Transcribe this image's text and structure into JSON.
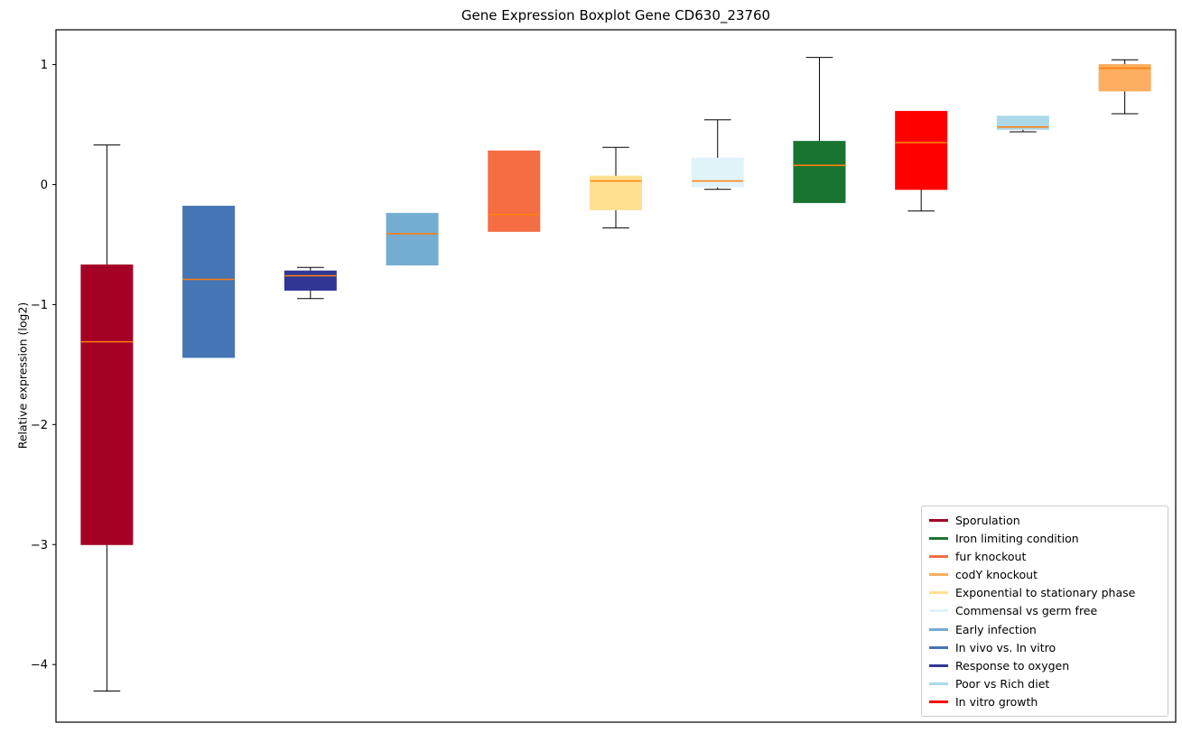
{
  "chart_data": {
    "type": "boxplot",
    "title": "Gene Expression Boxplot Gene CD630_23760",
    "xlabel": "",
    "ylabel": "Relative expression (log2)",
    "ylim": [
      -4.48,
      1.29
    ],
    "yticks": [
      1,
      0,
      -1,
      -2,
      -3,
      -4
    ],
    "grid": false,
    "median_color": "#ff7f0e",
    "whisker_color": "#000000",
    "legend_position": "lower right",
    "series": [
      {
        "label": "Sporulation",
        "color": "#a50026",
        "whisker_low": -4.22,
        "q1": -3.0,
        "median": -1.31,
        "q3": -0.67,
        "whisker_high": 0.33
      },
      {
        "label": "In vivo vs. In vitro",
        "color": "#4575b4",
        "whisker_low": -1.44,
        "q1": -1.44,
        "median": -0.79,
        "q3": -0.18,
        "whisker_high": -0.18
      },
      {
        "label": "Response to oxygen",
        "color": "#313695",
        "whisker_low": -0.95,
        "q1": -0.88,
        "median": -0.76,
        "q3": -0.72,
        "whisker_high": -0.69
      },
      {
        "label": "Early infection",
        "color": "#74add1",
        "whisker_low": -0.67,
        "q1": -0.67,
        "median": -0.41,
        "q3": -0.24,
        "whisker_high": -0.24
      },
      {
        "label": "fur knockout",
        "color": "#f46d43",
        "whisker_low": -0.39,
        "q1": -0.39,
        "median": -0.25,
        "q3": 0.28,
        "whisker_high": 0.28
      },
      {
        "label": "Exponential to stationary phase",
        "color": "#fee090",
        "whisker_low": -0.36,
        "q1": -0.21,
        "median": 0.03,
        "q3": 0.07,
        "whisker_high": 0.31
      },
      {
        "label": "Commensal vs germ free",
        "color": "#e0f3f8",
        "whisker_low": -0.04,
        "q1": -0.02,
        "median": 0.03,
        "q3": 0.22,
        "whisker_high": 0.54
      },
      {
        "label": "Iron limiting condition",
        "color": "#1a7431",
        "whisker_low": -0.15,
        "q1": -0.15,
        "median": 0.16,
        "q3": 0.36,
        "whisker_high": 1.06
      },
      {
        "label": "In vitro growth",
        "color": "#ff0000",
        "whisker_low": -0.22,
        "q1": -0.04,
        "median": 0.35,
        "q3": 0.61,
        "whisker_high": 0.61
      },
      {
        "label": "Poor vs Rich diet",
        "color": "#abd9e9",
        "whisker_low": 0.44,
        "q1": 0.46,
        "median": 0.48,
        "q3": 0.57,
        "whisker_high": 0.57
      },
      {
        "label": "codY knockout",
        "color": "#fdae61",
        "whisker_low": 0.59,
        "q1": 0.78,
        "median": 0.97,
        "q3": 1.0,
        "whisker_high": 1.04
      }
    ],
    "legend": [
      {
        "label": "Sporulation",
        "color": "#a50026"
      },
      {
        "label": "Iron limiting condition",
        "color": "#1a7431"
      },
      {
        "label": "fur knockout",
        "color": "#f46d43"
      },
      {
        "label": "codY knockout",
        "color": "#fdae61"
      },
      {
        "label": "Exponential to stationary phase",
        "color": "#fee090"
      },
      {
        "label": "Commensal vs germ free",
        "color": "#e0f3f8"
      },
      {
        "label": "Early infection",
        "color": "#74add1"
      },
      {
        "label": "In vivo vs. In vitro",
        "color": "#4575b4"
      },
      {
        "label": "Response to oxygen",
        "color": "#313695"
      },
      {
        "label": "Poor vs Rich diet",
        "color": "#abd9e9"
      },
      {
        "label": "In vitro growth",
        "color": "#ff0000"
      }
    ]
  }
}
